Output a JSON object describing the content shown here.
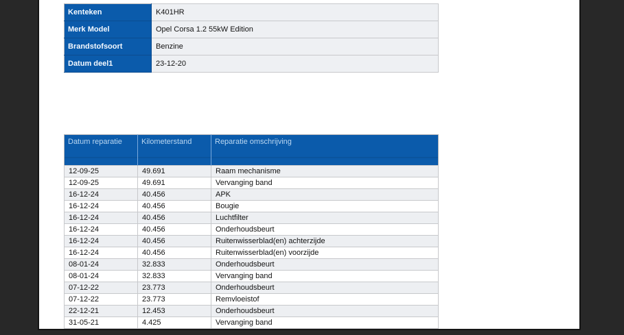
{
  "colors": {
    "accent_blue": "#0b5bab",
    "header_text_blue": "#b9d7f2",
    "alt_row_gray": "#edeff2",
    "dark_background": "#282828"
  },
  "vehicle_info": {
    "rows": [
      {
        "label": "Kenteken",
        "value": "K401HR"
      },
      {
        "label": "Merk Model",
        "value": "Opel Corsa 1.2 55kW Edition"
      },
      {
        "label": "Brandstofsoort",
        "value": "Benzine"
      },
      {
        "label": "Datum deel1",
        "value": "23-12-20"
      }
    ]
  },
  "repairs_table": {
    "columns": [
      "Datum reparatie",
      "Kilometerstand",
      "Reparatie omschrijving"
    ],
    "rows": [
      [
        "12-09-25",
        "49.691",
        "Raam mechanisme"
      ],
      [
        "12-09-25",
        "49.691",
        "Vervanging band"
      ],
      [
        "16-12-24",
        "40.456",
        "APK"
      ],
      [
        "16-12-24",
        "40.456",
        "Bougie"
      ],
      [
        "16-12-24",
        "40.456",
        "Luchtfilter"
      ],
      [
        "16-12-24",
        "40.456",
        "Onderhoudsbeurt"
      ],
      [
        "16-12-24",
        "40.456",
        "Ruitenwisserblad(en) achterzijde"
      ],
      [
        "16-12-24",
        "40.456",
        "Ruitenwisserblad(en) voorzijde"
      ],
      [
        "08-01-24",
        "32.833",
        "Onderhoudsbeurt"
      ],
      [
        "08-01-24",
        "32.833",
        "Vervanging band"
      ],
      [
        "07-12-22",
        "23.773",
        "Onderhoudsbeurt"
      ],
      [
        "07-12-22",
        "23.773",
        "Remvloeistof"
      ],
      [
        "22-12-21",
        "12.453",
        "Onderhoudsbeurt"
      ],
      [
        "31-05-21",
        "4.425",
        "Vervanging band"
      ]
    ]
  }
}
